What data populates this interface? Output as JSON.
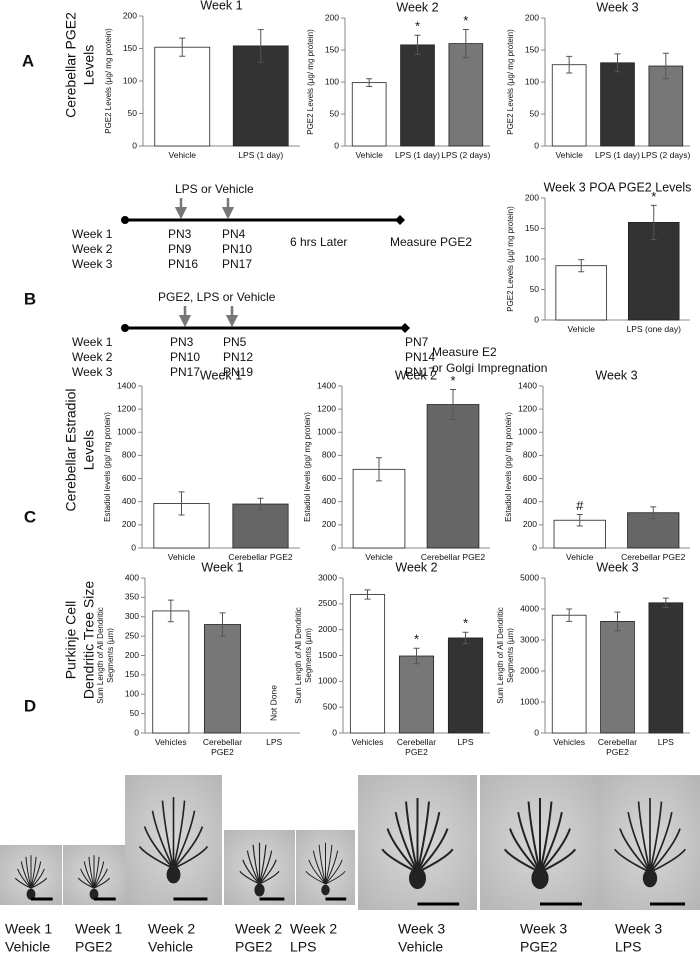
{
  "panels": {
    "a": "A",
    "b": "B",
    "c": "C",
    "d": "D"
  },
  "side_labels": {
    "a": [
      "Cerebellar PGE2",
      "Levels"
    ],
    "c": [
      "Cerebellar Estradiol",
      "Levels"
    ],
    "d": [
      "Purkinje Cell",
      "Dendritic Tree Size"
    ]
  },
  "timeline_a": {
    "treatment": "LPS or Vehicle",
    "weeks": [
      "Week 1",
      "Week 2",
      "Week 3"
    ],
    "columns": [
      [
        "PN3",
        "PN9",
        "PN16"
      ],
      [
        "PN4",
        "PN10",
        "PN17"
      ]
    ],
    "delay": "6 hrs Later",
    "measure": "Measure PGE2"
  },
  "timeline_b": {
    "treatment": "PGE2, LPS or Vehicle",
    "weeks": [
      "Week 1",
      "Week 2",
      "Week 3"
    ],
    "columns": [
      [
        "PN3",
        "PN10",
        "PN17"
      ],
      [
        "PN5",
        "PN12",
        "PN19"
      ],
      [
        "PN7",
        "PN14",
        "PN17"
      ]
    ],
    "measure": [
      "Measure E2",
      "or Golgi Impregnation"
    ]
  },
  "micrographs": [
    [
      "Week 1",
      "Vehicle"
    ],
    [
      "Week 1",
      "PGE2"
    ],
    [
      "Week 2",
      "Vehicle"
    ],
    [
      "Week 2",
      "PGE2"
    ],
    [
      "Week 2",
      "LPS"
    ],
    [
      "Week 3",
      "Vehicle"
    ],
    [
      "Week 3",
      "PGE2"
    ],
    [
      "Week 3",
      "LPS"
    ]
  ],
  "chart_data": [
    {
      "type": "bar",
      "title": "Week 1",
      "y_label": "PGE2 Levels (µg/ mg protein)",
      "categories": [
        "Vehicle",
        "LPS (1 day)"
      ],
      "values": [
        152,
        154
      ],
      "errors": [
        14,
        25
      ],
      "colors": [
        "#ffffff",
        "#333333"
      ],
      "ylim": [
        0,
        200
      ],
      "yticks": [
        0,
        50,
        100,
        150,
        200
      ]
    },
    {
      "type": "bar",
      "title": "Week 2",
      "y_label": "PGE2 Levels (µg/ mg protein)",
      "categories": [
        "Vehicle",
        "LPS (1 day)",
        "LPS (2 days)"
      ],
      "values": [
        99,
        158,
        160
      ],
      "errors": [
        6,
        15,
        22
      ],
      "markers": [
        null,
        "*",
        "*"
      ],
      "colors": [
        "#ffffff",
        "#333333",
        "#777777"
      ],
      "ylim": [
        0,
        200
      ],
      "yticks": [
        0,
        50,
        100,
        150,
        200
      ]
    },
    {
      "type": "bar",
      "title": "Week 3",
      "y_label": "PGE2 Levels (µg/ mg protein)",
      "categories": [
        "Vehicle",
        "LPS (1 day)",
        "LPS (2 days)"
      ],
      "values": [
        127,
        130,
        125
      ],
      "errors": [
        13,
        14,
        20
      ],
      "colors": [
        "#ffffff",
        "#333333",
        "#777777"
      ],
      "ylim": [
        0,
        200
      ],
      "yticks": [
        0,
        50,
        100,
        150,
        200
      ]
    },
    {
      "type": "bar",
      "title": "Week 3 POA PGE2 Levels",
      "y_label": "PGE2 Levels (µg/ mg protein)",
      "categories": [
        "Vehicle",
        "LPS (one day)"
      ],
      "values": [
        89,
        160
      ],
      "errors": [
        10,
        28
      ],
      "markers": [
        null,
        "*"
      ],
      "colors": [
        "#ffffff",
        "#333333"
      ],
      "ylim": [
        0,
        200
      ],
      "yticks": [
        0,
        50,
        100,
        150,
        200
      ]
    },
    {
      "type": "bar",
      "title": "Week 1",
      "y_label": "Estadiol levels (pg/ mg protein)",
      "categories": [
        "Vehicle",
        "Cerebellar PGE2"
      ],
      "values": [
        385,
        380
      ],
      "errors": [
        100,
        50
      ],
      "colors": [
        "#ffffff",
        "#666666"
      ],
      "ylim": [
        0,
        1400
      ],
      "yticks": [
        0,
        200,
        400,
        600,
        800,
        1000,
        1200,
        1400
      ]
    },
    {
      "type": "bar",
      "title": "Week 2",
      "y_label": "Estadiol levels (pg/ mg protein)",
      "categories": [
        "Vehicle",
        "Cerebellar PGE2"
      ],
      "values": [
        680,
        1240
      ],
      "errors": [
        100,
        130
      ],
      "markers": [
        null,
        "*"
      ],
      "colors": [
        "#ffffff",
        "#666666"
      ],
      "ylim": [
        0,
        1400
      ],
      "yticks": [
        0,
        200,
        400,
        600,
        800,
        1000,
        1200,
        1400
      ]
    },
    {
      "type": "bar",
      "title": "Week 3",
      "y_label": "Estadiol levels (pg/ mg protein)",
      "categories": [
        "Vehicle",
        "Cerebellar PGE2"
      ],
      "values": [
        240,
        305
      ],
      "errors": [
        50,
        50
      ],
      "markers": [
        "#",
        null
      ],
      "colors": [
        "#ffffff",
        "#666666"
      ],
      "ylim": [
        0,
        1400
      ],
      "yticks": [
        0,
        200,
        400,
        600,
        800,
        1000,
        1200,
        1400
      ]
    },
    {
      "type": "bar",
      "title": "Week 1",
      "y_label": [
        "Sum Length of All Dendritic",
        "Segments (µm)"
      ],
      "categories": [
        "Vehicles",
        "Cerebellar PGE2",
        "LPS"
      ],
      "values": [
        315,
        280,
        null
      ],
      "errors": [
        28,
        30,
        null
      ],
      "annotation": "Not Done",
      "colors": [
        "#ffffff",
        "#777777",
        "#333333"
      ],
      "ylim": [
        0,
        400
      ],
      "yticks": [
        0,
        50,
        100,
        150,
        200,
        250,
        300,
        350,
        400
      ]
    },
    {
      "type": "bar",
      "title": "Week 2",
      "y_label": [
        "Sum Length of All Dendritic",
        "Segments (µm)"
      ],
      "categories": [
        "Vehicles",
        "Cerebellar PGE2",
        "LPS"
      ],
      "values": [
        2680,
        1490,
        1840
      ],
      "errors": [
        90,
        150,
        110
      ],
      "markers": [
        null,
        "*",
        "*"
      ],
      "colors": [
        "#ffffff",
        "#777777",
        "#333333"
      ],
      "ylim": [
        0,
        3000
      ],
      "yticks": [
        0,
        500,
        1000,
        1500,
        2000,
        2500,
        3000
      ]
    },
    {
      "type": "bar",
      "title": "Week 3",
      "y_label": [
        "Sum Length of All Dendritic",
        "Segments (µm)"
      ],
      "categories": [
        "Vehicles",
        "Cerebellar PGE2",
        "LPS"
      ],
      "values": [
        3800,
        3600,
        4200
      ],
      "errors": [
        200,
        300,
        150
      ],
      "colors": [
        "#ffffff",
        "#777777",
        "#333333"
      ],
      "ylim": [
        0,
        5000
      ],
      "yticks": [
        0,
        1000,
        2000,
        3000,
        4000,
        5000
      ]
    }
  ]
}
